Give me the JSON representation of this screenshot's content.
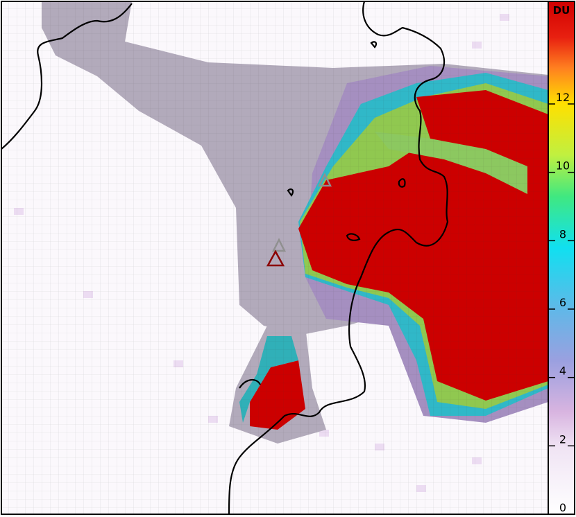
{
  "colorbar": {
    "label": "DU",
    "ticks": [
      0,
      2,
      4,
      6,
      8,
      10,
      12
    ],
    "range": [
      0,
      15
    ]
  }
}
